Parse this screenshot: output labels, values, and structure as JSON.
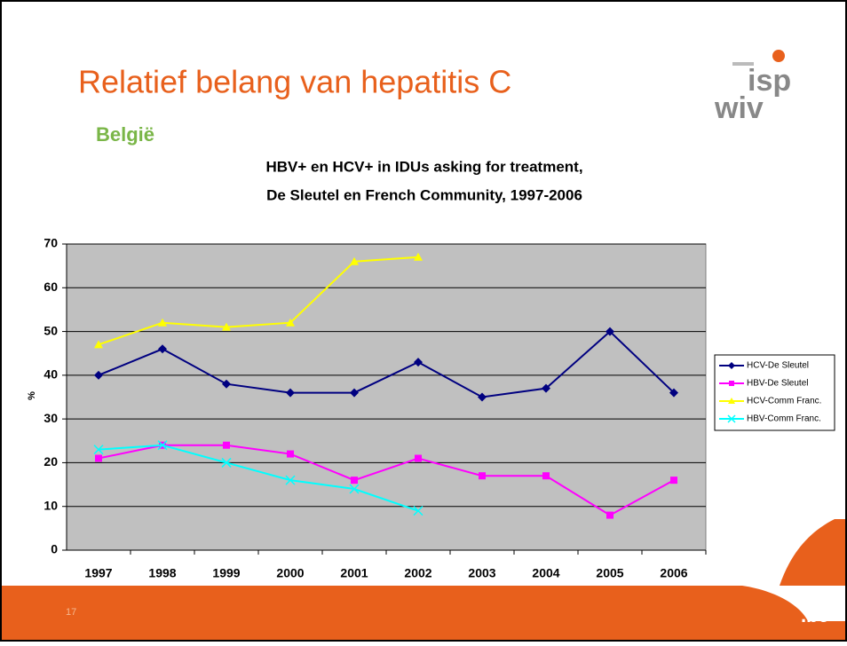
{
  "slide": {
    "title": "Relatief belang van hepatitis C",
    "subtitle": "België",
    "page_number": "17",
    "footer_logo": ".be",
    "logo": {
      "top": "isp",
      "bottom": "wiv"
    }
  },
  "chart_data": {
    "type": "line",
    "title": [
      "HBV+ en HCV+ in IDUs asking for treatment,",
      "De Sleutel en French Community, 1997-2006"
    ],
    "y_label": "%",
    "categories": [
      "1997",
      "1998",
      "1999",
      "2000",
      "2001",
      "2002",
      "2003",
      "2004",
      "2005",
      "2006"
    ],
    "series": [
      {
        "name": "HCV-De Sleutel",
        "color": "#000080",
        "marker": "diamond",
        "values": [
          40,
          46,
          38,
          36,
          36,
          43,
          35,
          37,
          50,
          36
        ]
      },
      {
        "name": "HBV-De Sleutel",
        "color": "#ff00ff",
        "marker": "square",
        "values": [
          21,
          24,
          24,
          22,
          16,
          21,
          17,
          17,
          8,
          16
        ]
      },
      {
        "name": "HCV-Comm Franc.",
        "color": "#ffff00",
        "marker": "triangle",
        "values": [
          47,
          52,
          51,
          52,
          66,
          67,
          null,
          null,
          null,
          null
        ]
      },
      {
        "name": "HBV-Comm Franc.",
        "color": "#00ffff",
        "marker": "x",
        "values": [
          23,
          24,
          20,
          16,
          14,
          9,
          null,
          null,
          null,
          null
        ]
      }
    ],
    "ylim": [
      0,
      70
    ],
    "yticks": [
      0,
      10,
      20,
      30,
      40,
      50,
      60,
      70
    ],
    "grid": true,
    "legend": "right",
    "plot_background": "#c0c0c0"
  }
}
